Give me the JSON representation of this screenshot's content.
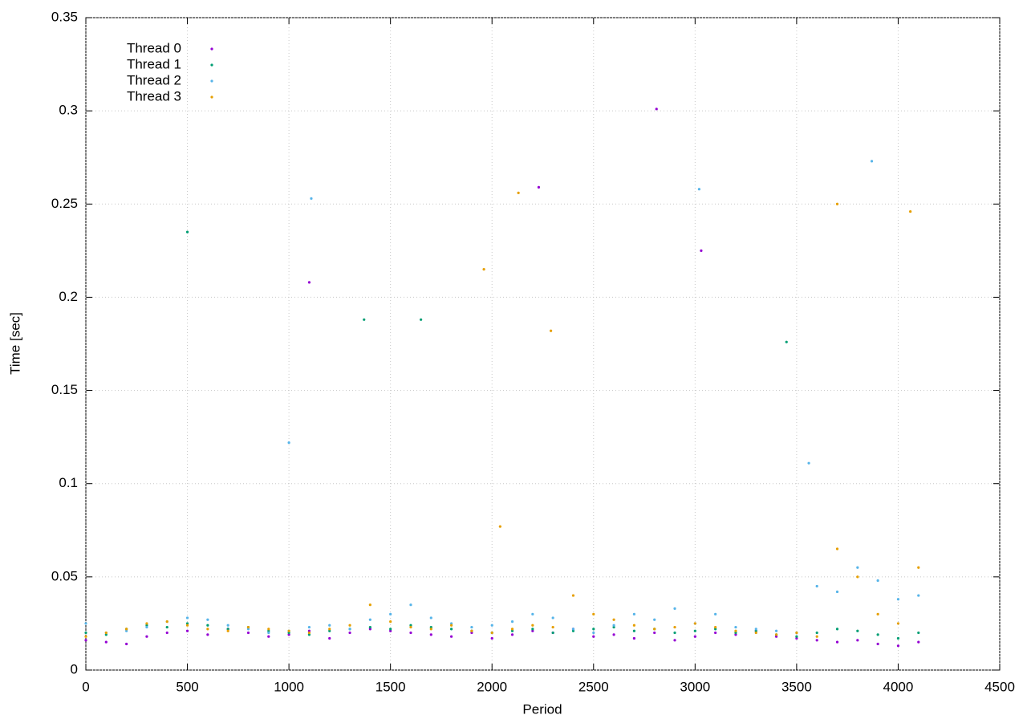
{
  "chart_data": {
    "type": "scatter",
    "x_label": "Period",
    "y_label": "Time [sec]",
    "xlim": [
      0,
      4500
    ],
    "xticks": [
      0,
      500,
      1000,
      1500,
      2000,
      2500,
      3000,
      3500,
      4000,
      4500
    ],
    "ylim": [
      0,
      0.35
    ],
    "yticks": [
      0,
      0.05,
      0.1,
      0.15,
      0.2,
      0.25,
      0.3,
      0.35
    ],
    "grid": true,
    "legend": "top-left",
    "series": [
      {
        "name": "Thread 0",
        "color": "#9400d3",
        "x": [
          0,
          100,
          200,
          300,
          400,
          500,
          600,
          700,
          800,
          900,
          1000,
          1100,
          1200,
          1300,
          1400,
          1500,
          1600,
          1700,
          1800,
          1900,
          2000,
          2100,
          2200,
          2300,
          2400,
          2500,
          2600,
          2700,
          2800,
          2900,
          3000,
          3100,
          3200,
          3300,
          3400,
          3500,
          3600,
          3700,
          3800,
          3900,
          4000,
          4100,
          1100,
          3030,
          2810,
          2230
        ],
        "values": [
          0.016,
          0.015,
          0.014,
          0.018,
          0.02,
          0.021,
          0.019,
          0.022,
          0.02,
          0.018,
          0.019,
          0.021,
          0.017,
          0.02,
          0.022,
          0.021,
          0.02,
          0.019,
          0.018,
          0.02,
          0.017,
          0.019,
          0.021,
          0.02,
          0.022,
          0.018,
          0.019,
          0.017,
          0.02,
          0.016,
          0.018,
          0.02,
          0.019,
          0.021,
          0.018,
          0.017,
          0.016,
          0.015,
          0.016,
          0.014,
          0.013,
          0.015,
          0.208,
          0.225,
          0.301,
          0.259
        ]
      },
      {
        "name": "Thread 1",
        "color": "#009e73",
        "x": [
          0,
          100,
          200,
          300,
          400,
          500,
          600,
          700,
          800,
          900,
          1000,
          1100,
          1200,
          1300,
          1400,
          1500,
          1600,
          1700,
          1800,
          1900,
          2000,
          2100,
          2200,
          2300,
          2400,
          2500,
          2600,
          2700,
          2800,
          2900,
          3000,
          3100,
          3200,
          3300,
          3400,
          3500,
          3600,
          3700,
          3800,
          3900,
          4000,
          4100,
          500,
          1370,
          3450,
          1650
        ],
        "values": [
          0.02,
          0.019,
          0.022,
          0.024,
          0.023,
          0.025,
          0.024,
          0.022,
          0.023,
          0.021,
          0.02,
          0.019,
          0.021,
          0.022,
          0.023,
          0.022,
          0.024,
          0.023,
          0.022,
          0.021,
          0.02,
          0.021,
          0.022,
          0.02,
          0.021,
          0.022,
          0.023,
          0.021,
          0.022,
          0.02,
          0.021,
          0.022,
          0.02,
          0.021,
          0.019,
          0.018,
          0.02,
          0.022,
          0.021,
          0.019,
          0.017,
          0.02,
          0.235,
          0.188,
          0.176,
          0.188
        ]
      },
      {
        "name": "Thread 2",
        "color": "#56b4e9",
        "x": [
          0,
          100,
          200,
          300,
          400,
          500,
          600,
          700,
          800,
          900,
          1000,
          1100,
          1200,
          1300,
          1400,
          1500,
          1600,
          1700,
          1800,
          1900,
          2000,
          2100,
          2200,
          2300,
          2400,
          2500,
          2600,
          2700,
          2800,
          2900,
          3000,
          3100,
          3200,
          3300,
          3400,
          3500,
          3600,
          3700,
          3800,
          3900,
          4000,
          4100,
          1110,
          3020,
          3870,
          1000,
          3560
        ],
        "values": [
          0.025,
          0.02,
          0.021,
          0.023,
          0.026,
          0.028,
          0.027,
          0.024,
          0.022,
          0.02,
          0.021,
          0.023,
          0.024,
          0.022,
          0.027,
          0.03,
          0.035,
          0.028,
          0.025,
          0.023,
          0.024,
          0.026,
          0.03,
          0.028,
          0.022,
          0.02,
          0.024,
          0.03,
          0.027,
          0.033,
          0.025,
          0.03,
          0.023,
          0.022,
          0.021,
          0.02,
          0.045,
          0.042,
          0.055,
          0.048,
          0.038,
          0.04,
          0.253,
          0.258,
          0.273,
          0.122,
          0.111
        ]
      },
      {
        "name": "Thread 3",
        "color": "#e69f00",
        "x": [
          0,
          100,
          200,
          300,
          400,
          500,
          600,
          700,
          800,
          900,
          1000,
          1100,
          1200,
          1300,
          1400,
          1500,
          1600,
          1700,
          1800,
          1900,
          2000,
          2100,
          2200,
          2300,
          2400,
          2500,
          2600,
          2700,
          2800,
          2900,
          3000,
          3100,
          3200,
          3300,
          3400,
          3500,
          3600,
          3700,
          3800,
          3900,
          4000,
          4100,
          2130,
          2290,
          3700,
          4060,
          1960,
          2040
        ],
        "values": [
          0.018,
          0.02,
          0.022,
          0.025,
          0.026,
          0.024,
          0.022,
          0.021,
          0.023,
          0.022,
          0.021,
          0.02,
          0.022,
          0.024,
          0.035,
          0.026,
          0.023,
          0.022,
          0.024,
          0.021,
          0.02,
          0.022,
          0.024,
          0.023,
          0.04,
          0.03,
          0.027,
          0.024,
          0.022,
          0.023,
          0.025,
          0.023,
          0.021,
          0.02,
          0.019,
          0.02,
          0.018,
          0.065,
          0.05,
          0.03,
          0.025,
          0.055,
          0.256,
          0.182,
          0.25,
          0.246,
          0.215,
          0.077
        ]
      }
    ]
  }
}
